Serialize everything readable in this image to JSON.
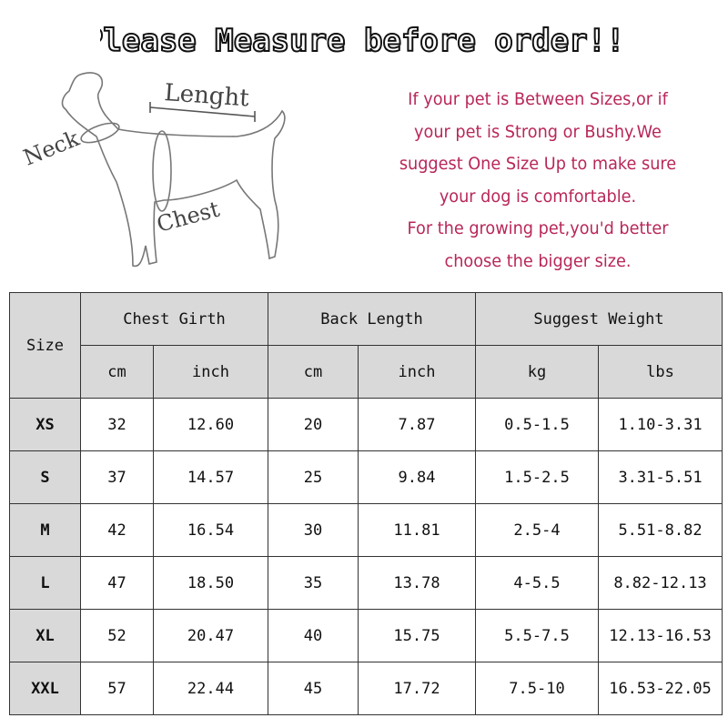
{
  "title": "Please Measure before order!!!",
  "diagram": {
    "labels": {
      "neck": "Neck",
      "length": "Lenght",
      "chest": "Chest"
    }
  },
  "advice": [
    "If your pet is Between Sizes,or if",
    "your pet is Strong or Bushy.We",
    "suggest One Size Up to make sure",
    "your dog is comfortable.",
    "For the growing pet,you'd better",
    "choose the bigger size."
  ],
  "colors": {
    "advice_text": "#b8265a",
    "header_bg": "#d9d9d9"
  },
  "table": {
    "size_header": "Size",
    "groups": [
      "Chest Girth",
      "Back Length",
      "Suggest Weight"
    ],
    "units": [
      "cm",
      "inch",
      "cm",
      "inch",
      "kg",
      "lbs"
    ],
    "rows": [
      [
        "XS",
        "32",
        "12.60",
        "20",
        "7.87",
        "0.5-1.5",
        "1.10-3.31"
      ],
      [
        "S",
        "37",
        "14.57",
        "25",
        "9.84",
        "1.5-2.5",
        "3.31-5.51"
      ],
      [
        "M",
        "42",
        "16.54",
        "30",
        "11.81",
        "2.5-4",
        "5.51-8.82"
      ],
      [
        "L",
        "47",
        "18.50",
        "35",
        "13.78",
        "4-5.5",
        "8.82-12.13"
      ],
      [
        "XL",
        "52",
        "20.47",
        "40",
        "15.75",
        "5.5-7.5",
        "12.13-16.53"
      ],
      [
        "XXL",
        "57",
        "22.44",
        "45",
        "17.72",
        "7.5-10",
        "16.53-22.05"
      ]
    ]
  }
}
